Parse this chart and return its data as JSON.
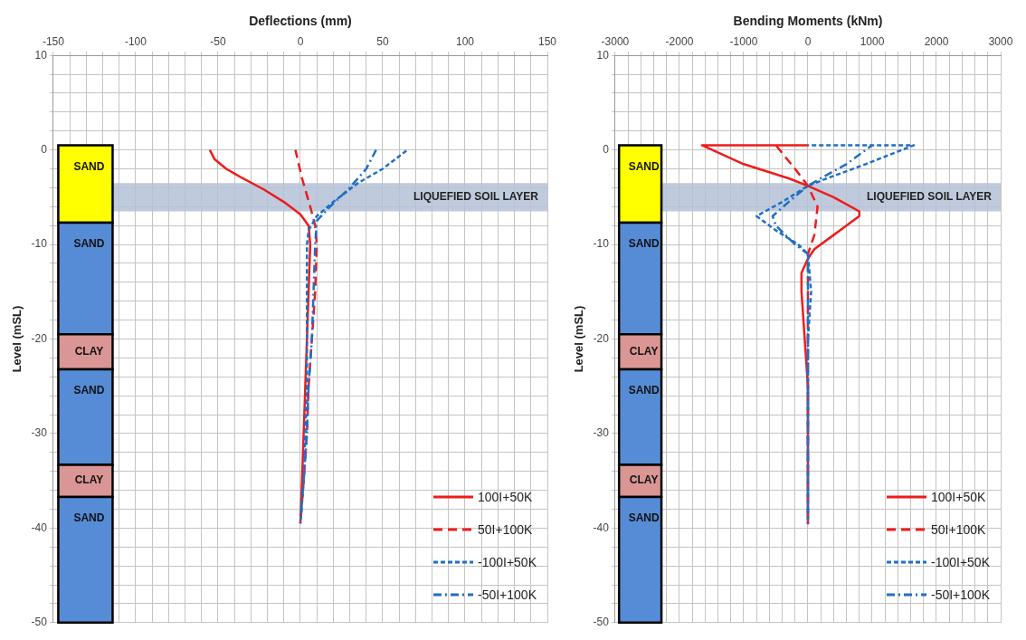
{
  "chart_data": [
    {
      "type": "line",
      "xlabel": "Deflections (mm)",
      "ylabel": "Level (mSL)",
      "xlim": [
        -150,
        150
      ],
      "xticks": [
        -150,
        {
          "value": -140,
          "label": null
        },
        {
          "value": -130,
          "label": null
        },
        {
          "value": -120,
          "label": null
        },
        {
          "value": -110,
          "label": null
        },
        -100,
        {
          "value": -90,
          "label": null
        },
        {
          "value": -80,
          "label": null
        },
        {
          "value": -70,
          "label": null
        },
        {
          "value": -60,
          "label": null
        },
        -50,
        {
          "value": -40,
          "label": null
        },
        {
          "value": -30,
          "label": null
        },
        {
          "value": -20,
          "label": null
        },
        {
          "value": -10,
          "label": null
        },
        0,
        {
          "value": 10,
          "label": null
        },
        {
          "value": 20,
          "label": null
        },
        {
          "value": 30,
          "label": null
        },
        {
          "value": 40,
          "label": null
        },
        50,
        {
          "value": 60,
          "label": null
        },
        {
          "value": 70,
          "label": null
        },
        {
          "value": 80,
          "label": null
        },
        {
          "value": 90,
          "label": null
        },
        100,
        {
          "value": 110,
          "label": null
        },
        {
          "value": 120,
          "label": null
        },
        {
          "value": 130,
          "label": null
        },
        {
          "value": 140,
          "label": null
        },
        150
      ],
      "ylim": [
        -50,
        10
      ],
      "yticks": [
        10,
        {
          "value": 8,
          "label": null
        },
        {
          "value": 6,
          "label": null
        },
        {
          "value": 4,
          "label": null
        },
        {
          "value": 2,
          "label": null
        },
        0,
        {
          "value": -2,
          "label": null
        },
        {
          "value": -4,
          "label": null
        },
        {
          "value": -6,
          "label": null
        },
        {
          "value": -8,
          "label": null
        },
        -10,
        {
          "value": -12,
          "label": null
        },
        {
          "value": -14,
          "label": null
        },
        {
          "value": -16,
          "label": null
        },
        {
          "value": -18,
          "label": null
        },
        -20,
        {
          "value": -22,
          "label": null
        },
        {
          "value": -24,
          "label": null
        },
        {
          "value": -26,
          "label": null
        },
        {
          "value": -28,
          "label": null
        },
        -30,
        {
          "value": -32,
          "label": null
        },
        {
          "value": -34,
          "label": null
        },
        {
          "value": -36,
          "label": null
        },
        {
          "value": -38,
          "label": null
        },
        -40,
        {
          "value": -42,
          "label": null
        },
        {
          "value": -44,
          "label": null
        },
        {
          "value": -46,
          "label": null
        },
        {
          "value": -48,
          "label": null
        },
        -50
      ],
      "grid": true,
      "legend": "bottom right",
      "series": [
        {
          "name": "100I+50K",
          "color": "#ee1c1c",
          "line_style": "solid",
          "x": [
            -55,
            -52,
            -45,
            -35,
            -22,
            -10,
            0,
            5,
            6,
            5,
            4,
            3,
            2,
            1,
            0
          ],
          "values": [
            0,
            -1,
            -2,
            -3,
            -4.2,
            -5.5,
            -6.8,
            -8,
            -10,
            -15,
            -20,
            -25,
            -30,
            -35,
            -39.5
          ]
        },
        {
          "name": "50I+100K",
          "color": "#ee1c1c",
          "line_style": "dashed",
          "x": [
            -3,
            1,
            6,
            9,
            10,
            9,
            7,
            5,
            4,
            2,
            0
          ],
          "values": [
            0,
            -3,
            -6,
            -8,
            -10,
            -15,
            -20,
            -25,
            -30,
            -35,
            -39.5
          ]
        },
        {
          "name": "-100I+50K",
          "color": "#1f6fc5",
          "line_style": "dotted",
          "x": [
            65,
            50,
            35,
            20,
            10,
            5,
            4,
            4,
            4,
            4,
            3,
            2,
            0
          ],
          "values": [
            0,
            -2,
            -3.5,
            -5.5,
            -7,
            -8.5,
            -10,
            -15,
            -20,
            -25,
            -30,
            -35,
            -39.5
          ]
        },
        {
          "name": "-50I+100K",
          "color": "#1f6fc5",
          "line_style": "dashdot",
          "x": [
            46,
            40,
            30,
            18,
            10,
            9,
            8,
            7,
            5,
            4,
            2,
            0
          ],
          "values": [
            0,
            -2,
            -4,
            -6,
            -7.5,
            -10,
            -15,
            -20,
            -25,
            -30,
            -35,
            -39.5
          ]
        }
      ],
      "bands": [
        {
          "axis": "y",
          "from": -3.5,
          "to": -6.5,
          "label": "LIQUEFIED SOIL LAYER",
          "color": "#b4c2d6"
        },
        {
          "axis": "y",
          "from": 0.5,
          "to": -7.7,
          "label": "SAND",
          "color": "#ffff00"
        },
        {
          "axis": "y",
          "from": -7.7,
          "to": -19.5,
          "label": "SAND",
          "color": "#568cd6"
        },
        {
          "axis": "y",
          "from": -19.5,
          "to": -23.2,
          "label": "CLAY",
          "color": "#d99694"
        },
        {
          "axis": "y",
          "from": -23.2,
          "to": -33.3,
          "label": "SAND",
          "color": "#568cd6"
        },
        {
          "axis": "y",
          "from": -33.3,
          "to": -36.7,
          "label": "CLAY",
          "color": "#d99694"
        },
        {
          "axis": "y",
          "from": -36.7,
          "to": -50,
          "label": "SAND",
          "color": "#568cd6"
        }
      ]
    },
    {
      "type": "line",
      "xlabel": "Bending Moments (kNm)",
      "ylabel": "Level (mSL)",
      "xlim": [
        -3000,
        3000
      ],
      "xticks": [
        -3000,
        {
          "value": -2800,
          "label": null
        },
        {
          "value": -2600,
          "label": null
        },
        {
          "value": -2400,
          "label": null
        },
        {
          "value": -2200,
          "label": null
        },
        -2000,
        {
          "value": -1800,
          "label": null
        },
        {
          "value": -1600,
          "label": null
        },
        {
          "value": -1400,
          "label": null
        },
        {
          "value": -1200,
          "label": null
        },
        -1000,
        {
          "value": -800,
          "label": null
        },
        {
          "value": -600,
          "label": null
        },
        {
          "value": -400,
          "label": null
        },
        {
          "value": -200,
          "label": null
        },
        0,
        {
          "value": 200,
          "label": null
        },
        {
          "value": 400,
          "label": null
        },
        {
          "value": 600,
          "label": null
        },
        {
          "value": 800,
          "label": null
        },
        1000,
        {
          "value": 1200,
          "label": null
        },
        {
          "value": 1400,
          "label": null
        },
        {
          "value": 1600,
          "label": null
        },
        {
          "value": 1800,
          "label": null
        },
        2000,
        {
          "value": 2200,
          "label": null
        },
        {
          "value": 2400,
          "label": null
        },
        {
          "value": 2600,
          "label": null
        },
        {
          "value": 2800,
          "label": null
        },
        3000
      ],
      "ylim": [
        -50,
        10
      ],
      "yticks": [
        10,
        {
          "value": 8,
          "label": null
        },
        {
          "value": 6,
          "label": null
        },
        {
          "value": 4,
          "label": null
        },
        {
          "value": 2,
          "label": null
        },
        0,
        {
          "value": -2,
          "label": null
        },
        {
          "value": -4,
          "label": null
        },
        {
          "value": -6,
          "label": null
        },
        {
          "value": -8,
          "label": null
        },
        -10,
        {
          "value": -12,
          "label": null
        },
        {
          "value": -14,
          "label": null
        },
        {
          "value": -16,
          "label": null
        },
        {
          "value": -18,
          "label": null
        },
        -20,
        {
          "value": -22,
          "label": null
        },
        {
          "value": -24,
          "label": null
        },
        {
          "value": -26,
          "label": null
        },
        {
          "value": -28,
          "label": null
        },
        -30,
        {
          "value": -32,
          "label": null
        },
        {
          "value": -34,
          "label": null
        },
        {
          "value": -36,
          "label": null
        },
        {
          "value": -38,
          "label": null
        },
        -40,
        {
          "value": -42,
          "label": null
        },
        {
          "value": -44,
          "label": null
        },
        {
          "value": -46,
          "label": null
        },
        {
          "value": -48,
          "label": null
        },
        -50
      ],
      "grid": true,
      "legend": "bottom right",
      "series": [
        {
          "name": "100I+50K",
          "color": "#ee1c1c",
          "line_style": "solid",
          "x": [
            0,
            -1650,
            -1000,
            -300,
            0,
            400,
            800,
            800,
            400,
            100,
            0,
            -100,
            -100,
            -50,
            0,
            0
          ],
          "values": [
            0.5,
            0.5,
            -1.5,
            -3,
            -3.8,
            -5,
            -6.5,
            -7,
            -9,
            -10.5,
            -11.5,
            -13,
            -15,
            -20,
            -25,
            -39.5
          ]
        },
        {
          "name": "50I+100K",
          "color": "#ee1c1c",
          "line_style": "dashed",
          "x": [
            -500,
            -200,
            0,
            150,
            100,
            0,
            0
          ],
          "values": [
            0.5,
            -2,
            -3.8,
            -6,
            -9,
            -11,
            -39.5
          ]
        },
        {
          "name": "-100I+50K",
          "color": "#1f6fc5",
          "line_style": "dotted",
          "x": [
            0,
            1650,
            900,
            300,
            0,
            -400,
            -800,
            -500,
            -150,
            0,
            50,
            0,
            0
          ],
          "values": [
            0.5,
            0.5,
            -1.5,
            -3,
            -3.8,
            -5.5,
            -7,
            -8.5,
            -10,
            -11,
            -15,
            -20,
            -39.5
          ]
        },
        {
          "name": "-50I+100K",
          "color": "#1f6fc5",
          "line_style": "dashdot",
          "x": [
            1000,
            600,
            200,
            0,
            -300,
            -550,
            -500,
            -200,
            0,
            0
          ],
          "values": [
            0.5,
            -1.5,
            -3,
            -3.8,
            -5.5,
            -7,
            -8,
            -10,
            -11,
            -39.5
          ]
        }
      ],
      "bands": [
        {
          "axis": "y",
          "from": -3.5,
          "to": -6.5,
          "label": "LIQUEFIED SOIL LAYER",
          "color": "#b4c2d6"
        },
        {
          "axis": "y",
          "from": 0.5,
          "to": -7.7,
          "label": "SAND",
          "color": "#ffff00"
        },
        {
          "axis": "y",
          "from": -7.7,
          "to": -19.5,
          "label": "SAND",
          "color": "#568cd6"
        },
        {
          "axis": "y",
          "from": -19.5,
          "to": -23.2,
          "label": "CLAY",
          "color": "#d99694"
        },
        {
          "axis": "y",
          "from": -23.2,
          "to": -33.3,
          "label": "SAND",
          "color": "#568cd6"
        },
        {
          "axis": "y",
          "from": -33.3,
          "to": -36.7,
          "label": "CLAY",
          "color": "#d99694"
        },
        {
          "axis": "y",
          "from": -36.7,
          "to": -50,
          "label": "SAND",
          "color": "#568cd6"
        }
      ]
    }
  ]
}
